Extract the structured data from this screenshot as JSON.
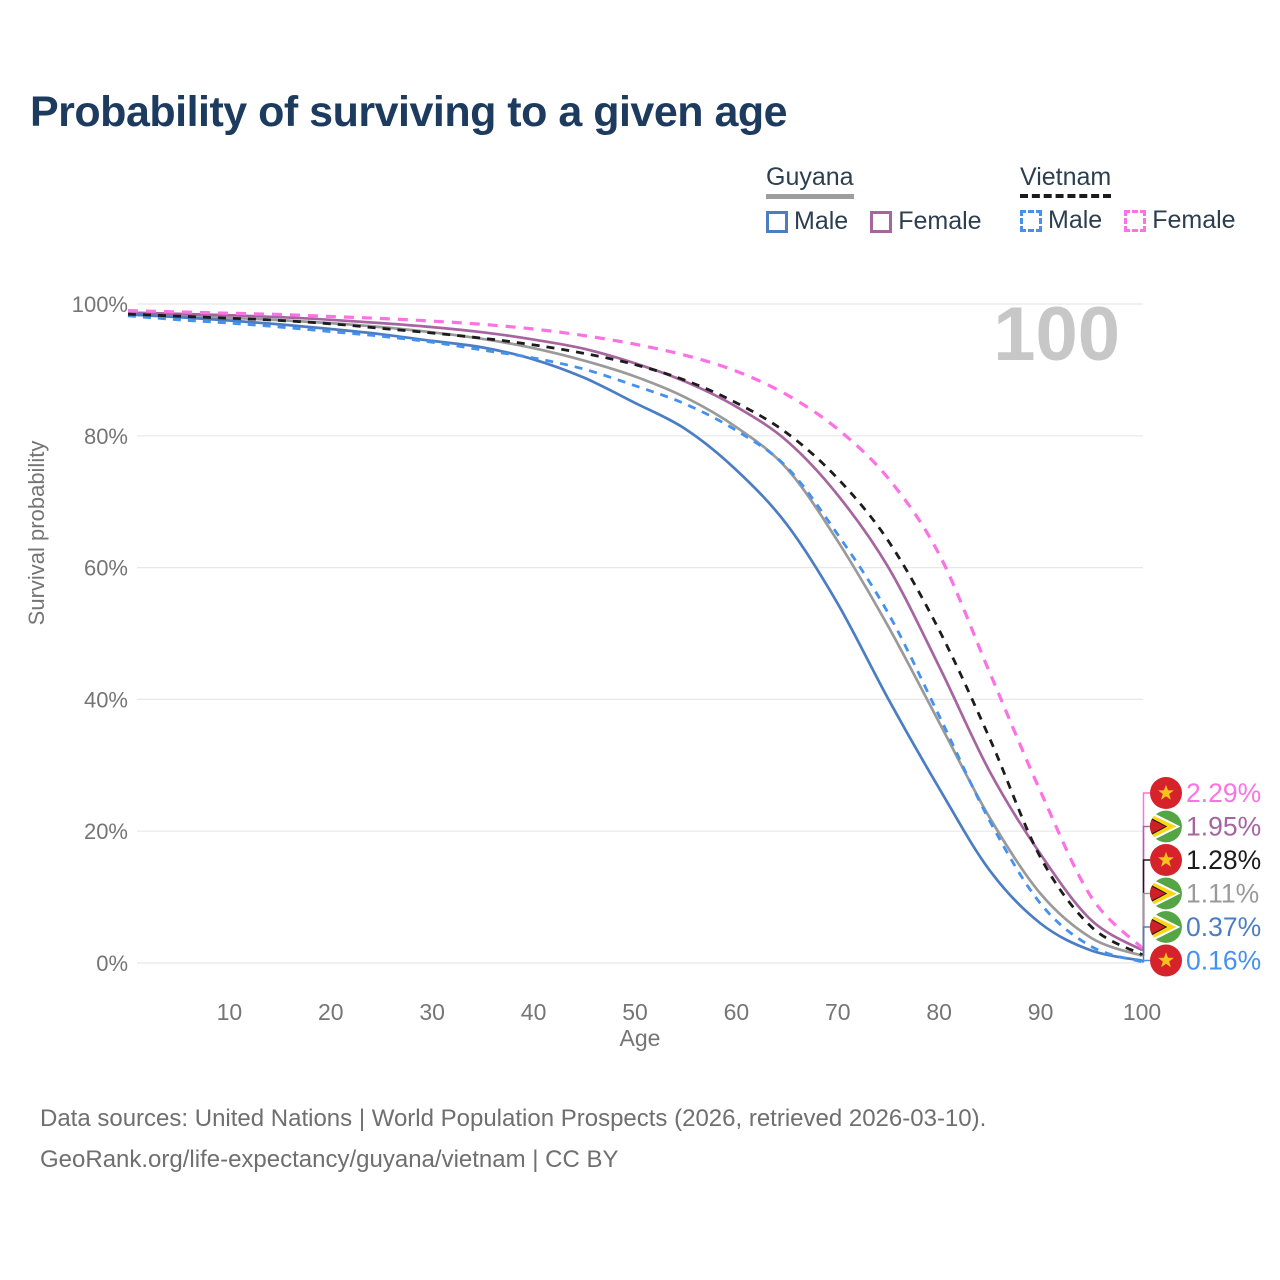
{
  "title": "Probability of surviving to a given age",
  "legend": {
    "guyana": {
      "label": "Guyana",
      "male": "Male",
      "female": "Female"
    },
    "vietnam": {
      "label": "Vietnam",
      "male": "Male",
      "female": "Female"
    }
  },
  "axes": {
    "y_title": "Survival probability",
    "x_title": "Age",
    "y_ticks": [
      "0%",
      "20%",
      "40%",
      "60%",
      "80%",
      "100%"
    ],
    "x_ticks": [
      "10",
      "20",
      "30",
      "40",
      "50",
      "60",
      "70",
      "80",
      "90",
      "100"
    ]
  },
  "watermark_age": "100",
  "footer": {
    "line1": "Data sources: United Nations | World Population Prospects (2026, retrieved 2026-03-10).",
    "line2": "GeoRank.org/life-expectancy/guyana/vietnam | CC BY"
  },
  "chart_data": {
    "type": "line",
    "title": "Probability of surviving to a given age",
    "xlabel": "Age",
    "ylabel": "Survival probability",
    "x_range": [
      0,
      100
    ],
    "y_range_percent": [
      0,
      100
    ],
    "grid": "horizontal",
    "x": [
      0,
      5,
      10,
      15,
      20,
      25,
      30,
      35,
      40,
      45,
      50,
      55,
      60,
      65,
      70,
      75,
      80,
      85,
      90,
      95,
      100
    ],
    "series": [
      {
        "name": "Vietnam Female",
        "country": "Vietnam",
        "sex": "Female",
        "line_style": "dashed",
        "color": "#fc72e4",
        "end_label": "2.29%",
        "values": [
          99.0,
          98.8,
          98.6,
          98.4,
          98.1,
          97.8,
          97.4,
          96.9,
          96.2,
          95.2,
          93.9,
          92.2,
          89.8,
          86.2,
          81.0,
          73.5,
          62.0,
          44.0,
          26.0,
          10.0,
          2.29
        ]
      },
      {
        "name": "Guyana Female",
        "country": "Guyana",
        "sex": "Female",
        "line_style": "solid",
        "color": "#a765a0",
        "end_label": "1.95%",
        "values": [
          98.7,
          98.5,
          98.3,
          98.0,
          97.6,
          97.1,
          96.5,
          95.7,
          94.6,
          93.2,
          91.0,
          88.2,
          84.4,
          79.2,
          71.0,
          60.0,
          45.0,
          29.0,
          16.5,
          6.5,
          1.95
        ]
      },
      {
        "name": "Vietnam Both sexes",
        "country": "Vietnam",
        "sex": "Both",
        "line_style": "dashed",
        "color": "#1c1c1c",
        "end_label": "1.28%",
        "values": [
          98.45,
          98.15,
          97.85,
          97.5,
          97.0,
          96.3,
          95.6,
          94.8,
          93.8,
          92.5,
          90.8,
          88.4,
          85.0,
          80.4,
          73.5,
          64.0,
          50.5,
          34.0,
          16.0,
          5.5,
          1.28
        ]
      },
      {
        "name": "Guyana Both sexes",
        "country": "Guyana",
        "sex": "Both",
        "line_style": "solid",
        "color": "#9a9a9a",
        "end_label": "1.11%",
        "values": [
          98.5,
          98.2,
          97.9,
          97.55,
          97.1,
          96.5,
          95.7,
          94.7,
          93.3,
          91.4,
          89.0,
          85.8,
          81.3,
          75.0,
          64.0,
          51.0,
          36.5,
          22.0,
          10.5,
          3.8,
          1.11
        ]
      },
      {
        "name": "Guyana Male",
        "country": "Guyana",
        "sex": "Male",
        "line_style": "solid",
        "color": "#4a7dc4",
        "end_label": "0.37%",
        "values": [
          98.4,
          98.0,
          97.5,
          96.9,
          96.2,
          95.4,
          94.4,
          93.4,
          91.6,
          88.8,
          85.0,
          81.0,
          74.8,
          66.5,
          54.5,
          40.0,
          26.5,
          14.0,
          6.0,
          1.9,
          0.37
        ]
      },
      {
        "name": "Vietnam Male",
        "country": "Vietnam",
        "sex": "Male",
        "line_style": "dashed",
        "color": "#4591f0",
        "end_label": "0.16%",
        "values": [
          98.2,
          97.6,
          97.1,
          96.5,
          95.8,
          95.1,
          94.2,
          93.0,
          91.8,
          90.1,
          87.6,
          84.8,
          80.8,
          75.2,
          65.0,
          53.0,
          37.5,
          21.5,
          9.0,
          2.5,
          0.16
        ]
      }
    ],
    "flag_colors": {
      "vietnam_red": "#d6222b",
      "vietnam_star": "#f5c51b",
      "guyana_green": "#55a546",
      "guyana_gold": "#f9d616",
      "guyana_red": "#cf2027",
      "guyana_black": "#1a1a1a"
    }
  }
}
